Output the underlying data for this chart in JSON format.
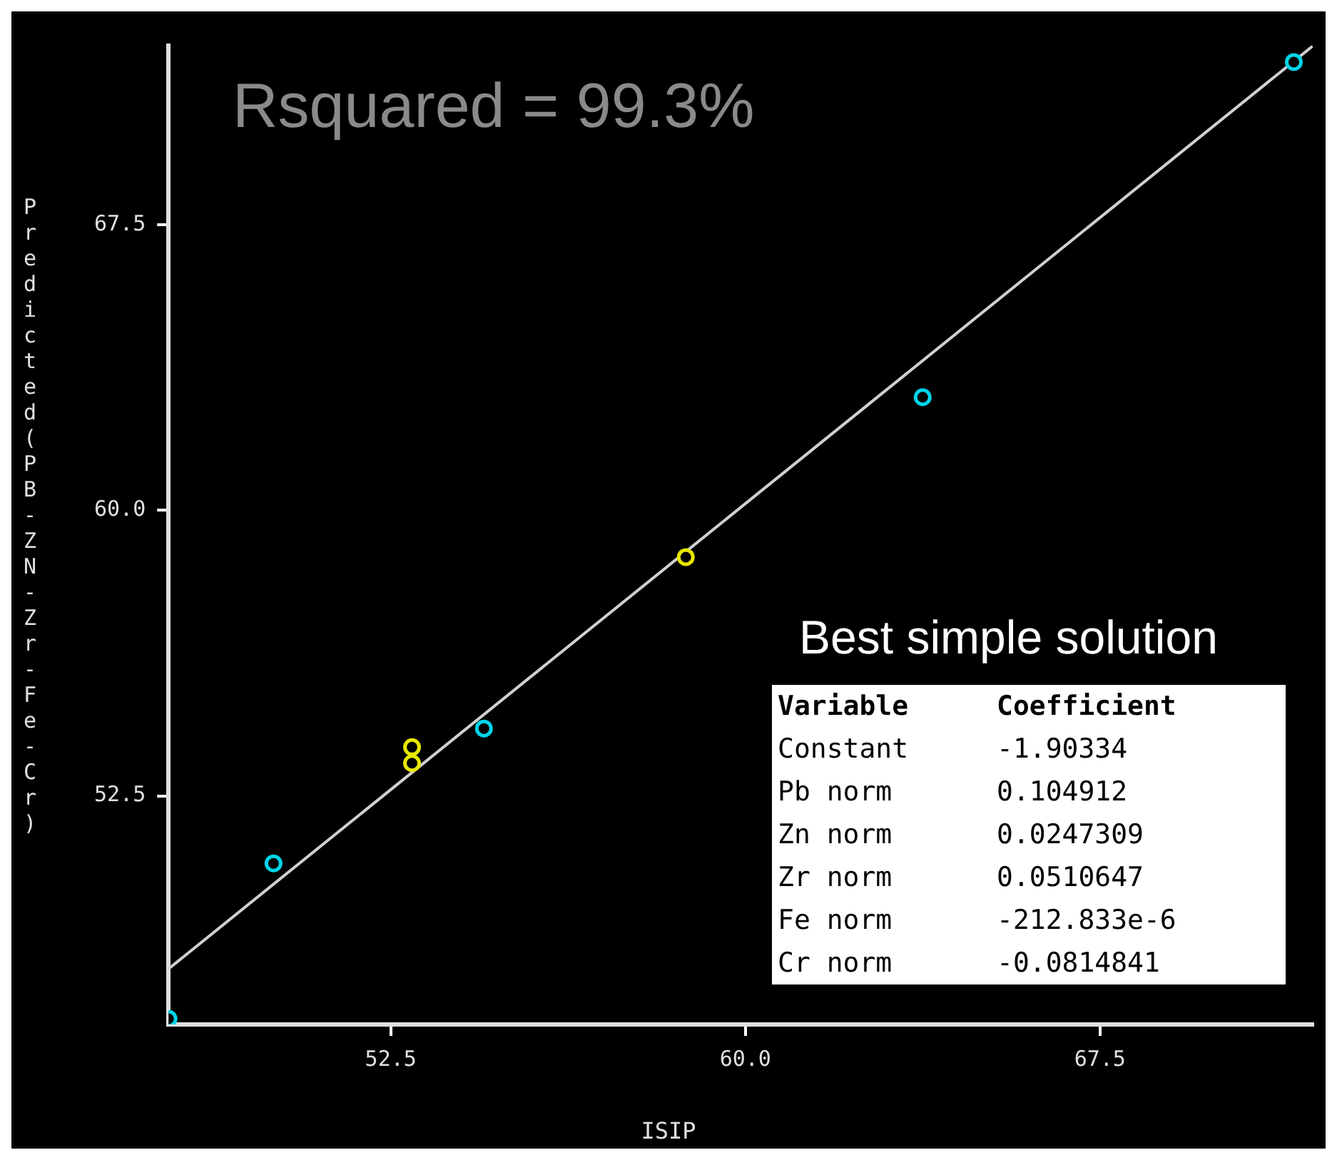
{
  "chart_data": {
    "type": "scatter",
    "xlabel": "ISIP",
    "ylabel": "Predicted(PB-ZN-Zr-Fe-Cr)",
    "xlim": [
      47.8,
      72.0
    ],
    "ylim": [
      46.5,
      72.2
    ],
    "xticks": [
      52.5,
      {
        "value": 60,
        "label": "60.0"
      },
      67.5
    ],
    "yticks": [
      52.5,
      {
        "value": 60,
        "label": "60.0"
      },
      67.5
    ],
    "grid": false,
    "legend": false,
    "marker": "circle",
    "series": [
      {
        "color": "#00d4e8",
        "x": [
          47.8,
          50.02,
          54.47,
          63.75,
          71.6
        ],
        "values": [
          46.65,
          50.73,
          54.27,
          62.97,
          71.77
        ]
      },
      {
        "color": "#e8e800",
        "x": [
          52.95,
          52.95,
          58.74
        ],
        "values": [
          53.78,
          53.36,
          58.77
        ]
      },
      {
        "type": "line",
        "color": "#d0d0d0",
        "line_style": "solid",
        "marker": "none",
        "x": [
          47.8,
          72.0
        ],
        "values": [
          47.96,
          72.19
        ]
      }
    ],
    "annotations": [
      "Rsquared = 99.3%",
      "Best simple solution",
      "Variable",
      "Coefficient",
      "Constant",
      "-1.90334",
      "Pb norm",
      "0.104912",
      "Zn norm",
      "0.0247309",
      "Zr norm",
      "0.0510647",
      "Fe norm",
      "-212.833e-6",
      "Cr norm",
      "-0.0814841"
    ]
  }
}
